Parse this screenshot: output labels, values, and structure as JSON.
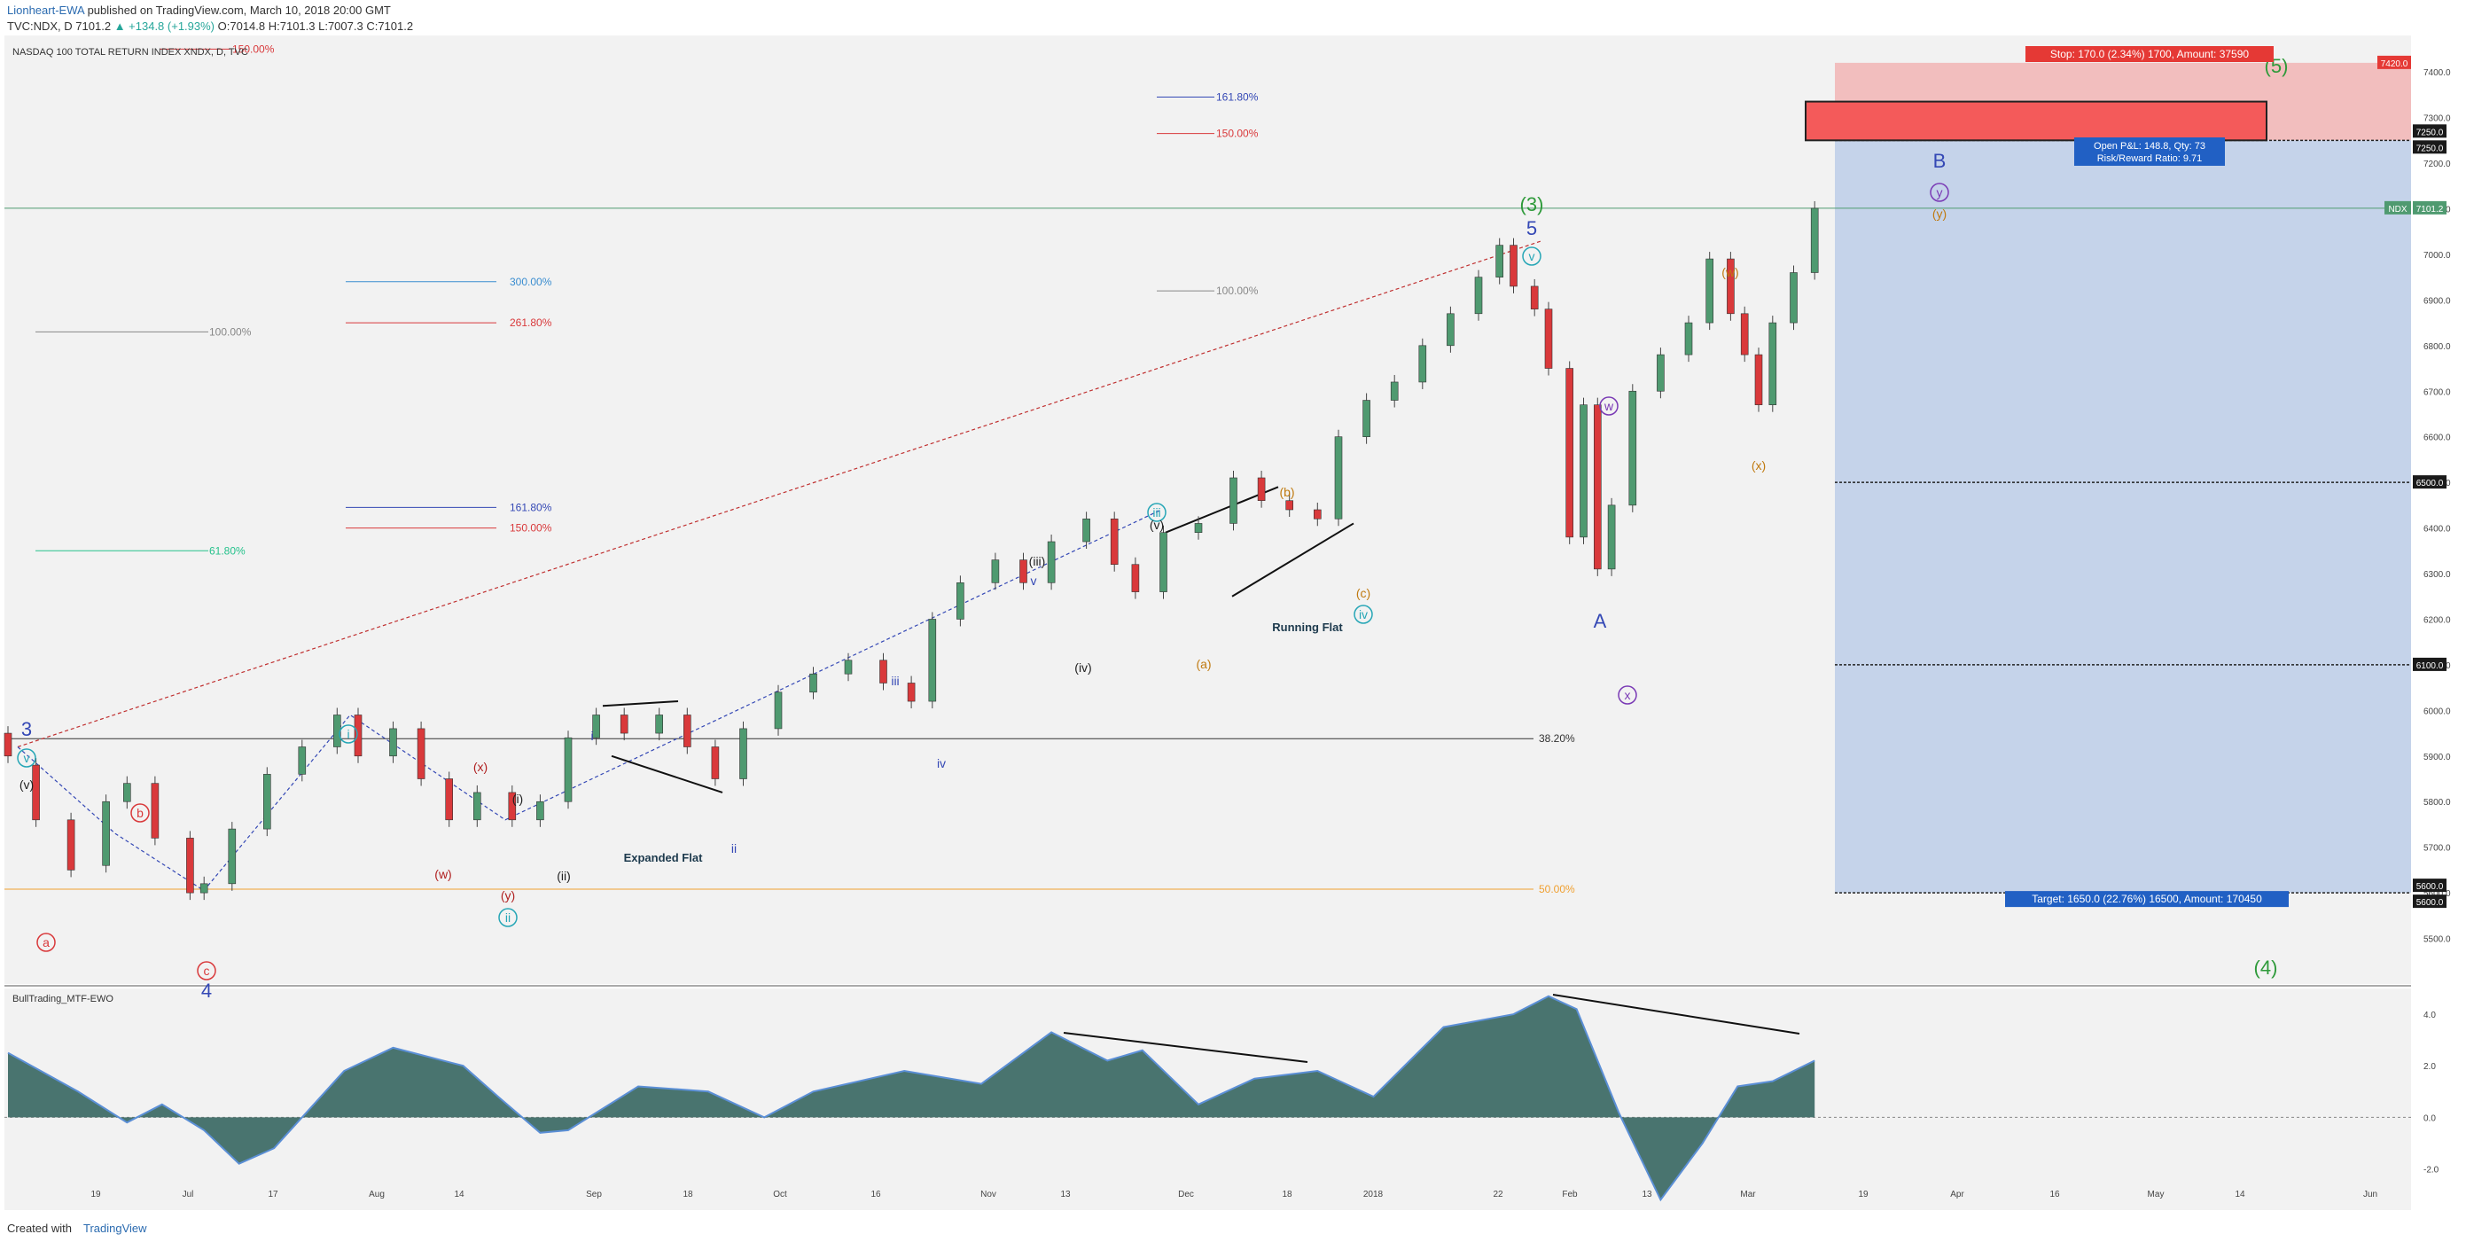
{
  "header": {
    "author": "Lionheart-EWA",
    "published": "published on TradingView.com, March 10, 2018 20:00 GMT",
    "symbol": "TVC:NDX, D",
    "price": "7101.2",
    "change": "▲ +134.8 (+1.93%)",
    "ohlc": "O:7014.8 H:7101.3 L:7007.3 C:7101.2"
  },
  "footer": {
    "created_with": "Created with",
    "brand": "TradingView"
  },
  "chart_data": {
    "type": "candlestick",
    "title": "NASDAQ 100 TOTAL RETURN INDEX XNDX, D, TVC",
    "ylim": [
      5400,
      7480
    ],
    "y_ticks": [
      5500,
      5600,
      5700,
      5800,
      5900,
      6000,
      6100,
      6200,
      6300,
      6400,
      6500,
      6600,
      6700,
      6800,
      6900,
      7000,
      7100,
      7200,
      7300,
      7400
    ],
    "x_ticks": [
      "19",
      "Jul",
      "17",
      "Aug",
      "14",
      "Sep",
      "18",
      "Oct",
      "16",
      "Nov",
      "13",
      "Dec",
      "18",
      "2018",
      "22",
      "Feb",
      "13",
      "Mar",
      "19",
      "Apr",
      "16",
      "May",
      "14",
      "Jun"
    ],
    "colors": {
      "up": "#4f9a70",
      "down": "#d9393b",
      "background": "#f2f2f2"
    },
    "price_series": [
      {
        "x": 0,
        "o": 5950,
        "c": 5900
      },
      {
        "x": 8,
        "o": 5880,
        "c": 5760
      },
      {
        "x": 18,
        "o": 5760,
        "c": 5650
      },
      {
        "x": 28,
        "o": 5660,
        "c": 5800
      },
      {
        "x": 34,
        "o": 5800,
        "c": 5840
      },
      {
        "x": 42,
        "o": 5840,
        "c": 5720
      },
      {
        "x": 52,
        "o": 5720,
        "c": 5600
      },
      {
        "x": 56,
        "o": 5600,
        "c": 5620
      },
      {
        "x": 64,
        "o": 5620,
        "c": 5740
      },
      {
        "x": 74,
        "o": 5740,
        "c": 5860
      },
      {
        "x": 84,
        "o": 5860,
        "c": 5920
      },
      {
        "x": 94,
        "o": 5920,
        "c": 5990
      },
      {
        "x": 100,
        "o": 5990,
        "c": 5900
      },
      {
        "x": 110,
        "o": 5900,
        "c": 5960
      },
      {
        "x": 118,
        "o": 5960,
        "c": 5850
      },
      {
        "x": 126,
        "o": 5850,
        "c": 5760
      },
      {
        "x": 134,
        "o": 5760,
        "c": 5820
      },
      {
        "x": 144,
        "o": 5820,
        "c": 5760
      },
      {
        "x": 152,
        "o": 5760,
        "c": 5800
      },
      {
        "x": 160,
        "o": 5800,
        "c": 5940
      },
      {
        "x": 168,
        "o": 5940,
        "c": 5990
      },
      {
        "x": 176,
        "o": 5990,
        "c": 5950
      },
      {
        "x": 186,
        "o": 5950,
        "c": 5990
      },
      {
        "x": 194,
        "o": 5990,
        "c": 5920
      },
      {
        "x": 202,
        "o": 5920,
        "c": 5850
      },
      {
        "x": 210,
        "o": 5850,
        "c": 5960
      },
      {
        "x": 220,
        "o": 5960,
        "c": 6040
      },
      {
        "x": 230,
        "o": 6040,
        "c": 6080
      },
      {
        "x": 240,
        "o": 6080,
        "c": 6110
      },
      {
        "x": 250,
        "o": 6110,
        "c": 6060
      },
      {
        "x": 258,
        "o": 6060,
        "c": 6020
      },
      {
        "x": 264,
        "o": 6020,
        "c": 6200
      },
      {
        "x": 272,
        "o": 6200,
        "c": 6280
      },
      {
        "x": 282,
        "o": 6280,
        "c": 6330
      },
      {
        "x": 290,
        "o": 6330,
        "c": 6280
      },
      {
        "x": 298,
        "o": 6280,
        "c": 6370
      },
      {
        "x": 308,
        "o": 6370,
        "c": 6420
      },
      {
        "x": 316,
        "o": 6420,
        "c": 6320
      },
      {
        "x": 322,
        "o": 6320,
        "c": 6260
      },
      {
        "x": 330,
        "o": 6260,
        "c": 6390
      },
      {
        "x": 340,
        "o": 6390,
        "c": 6410
      },
      {
        "x": 350,
        "o": 6410,
        "c": 6510
      },
      {
        "x": 358,
        "o": 6510,
        "c": 6460
      },
      {
        "x": 366,
        "o": 6460,
        "c": 6440
      },
      {
        "x": 374,
        "o": 6440,
        "c": 6420
      },
      {
        "x": 380,
        "o": 6420,
        "c": 6600
      },
      {
        "x": 388,
        "o": 6600,
        "c": 6680
      },
      {
        "x": 396,
        "o": 6680,
        "c": 6720
      },
      {
        "x": 404,
        "o": 6720,
        "c": 6800
      },
      {
        "x": 412,
        "o": 6800,
        "c": 6870
      },
      {
        "x": 420,
        "o": 6870,
        "c": 6950
      },
      {
        "x": 426,
        "o": 6950,
        "c": 7020
      },
      {
        "x": 430,
        "o": 7020,
        "c": 6930
      },
      {
        "x": 436,
        "o": 6930,
        "c": 6880
      },
      {
        "x": 440,
        "o": 6880,
        "c": 6750
      },
      {
        "x": 446,
        "o": 6750,
        "c": 6380
      },
      {
        "x": 450,
        "o": 6380,
        "c": 6670
      },
      {
        "x": 454,
        "o": 6670,
        "c": 6310
      },
      {
        "x": 458,
        "o": 6310,
        "c": 6450
      },
      {
        "x": 464,
        "o": 6450,
        "c": 6700
      },
      {
        "x": 472,
        "o": 6700,
        "c": 6780
      },
      {
        "x": 480,
        "o": 6780,
        "c": 6850
      },
      {
        "x": 486,
        "o": 6850,
        "c": 6990
      },
      {
        "x": 492,
        "o": 6990,
        "c": 6870
      },
      {
        "x": 496,
        "o": 6870,
        "c": 6780
      },
      {
        "x": 500,
        "o": 6780,
        "c": 6670
      },
      {
        "x": 504,
        "o": 6670,
        "c": 6850
      },
      {
        "x": 510,
        "o": 6850,
        "c": 6960
      },
      {
        "x": 516,
        "o": 6960,
        "c": 7101
      }
    ],
    "ewo_series": {
      "x": [
        0,
        20,
        34,
        44,
        56,
        66,
        76,
        96,
        110,
        130,
        140,
        152,
        160,
        180,
        200,
        216,
        230,
        256,
        278,
        298,
        314,
        324,
        340,
        356,
        374,
        390,
        410,
        430,
        440,
        448,
        460,
        472,
        484,
        494,
        504,
        516
      ],
      "y": [
        2.5,
        1.0,
        -0.2,
        0.5,
        -0.5,
        -1.8,
        -1.2,
        1.8,
        2.7,
        2.0,
        0.8,
        -0.6,
        -0.5,
        1.2,
        1.0,
        0.0,
        1.0,
        1.8,
        1.3,
        3.3,
        2.2,
        2.6,
        0.5,
        1.5,
        1.8,
        0.8,
        3.5,
        4.0,
        4.7,
        4.2,
        0.2,
        -3.2,
        -1.0,
        1.2,
        1.4,
        2.2
      ],
      "ylim": [
        -3.6,
        5.0
      ],
      "ticks": [
        4.0,
        2.0,
        0.0,
        -2.0
      ],
      "label": "BullTrading_MTF-EWO"
    },
    "annotations": {
      "fib_levels": [
        {
          "label": "300.00%",
          "value": 6940,
          "color": "#3a8dd0"
        },
        {
          "label": "261.80%",
          "value": 6850,
          "color": "#d9393b"
        },
        {
          "label": "100.00%",
          "value": 6830,
          "color": "#888888"
        },
        {
          "label": "161.80%",
          "value": 6445,
          "color": "#3448b5"
        },
        {
          "label": "150.00%",
          "value": 6400,
          "color": "#d9393b"
        },
        {
          "label": "61.80%",
          "value": 6350,
          "color": "#26c28c"
        },
        {
          "label": "161.80%",
          "value": 7345,
          "color": "#3448b5"
        },
        {
          "label": "150.00%",
          "value": 7265,
          "color": "#d9393b"
        },
        {
          "label": "100.00%",
          "value": 6920,
          "color": "#888888"
        },
        {
          "label": "150.00%",
          "value": 7450,
          "color": "#d9393b"
        },
        {
          "label": "38.20%",
          "value": 5938,
          "color": "#333333"
        },
        {
          "label": "50.00%",
          "value": 5608,
          "color": "#f0a030"
        }
      ],
      "wave_labels": [
        {
          "t": "3",
          "c": "#3448b5"
        },
        {
          "t": "v",
          "c": "#26a6b6"
        },
        {
          "t": "(v)",
          "c": "#222222"
        },
        {
          "t": "a",
          "c": "#d9393b"
        },
        {
          "t": "b",
          "c": "#d9393b"
        },
        {
          "t": "c",
          "c": "#d9393b"
        },
        {
          "t": "4",
          "c": "#3448b5"
        },
        {
          "t": "i",
          "c": "#26a6b6"
        },
        {
          "t": "(x)",
          "c": "#b02020"
        },
        {
          "t": "(w)",
          "c": "#b02020"
        },
        {
          "t": "(y)",
          "c": "#b02020"
        },
        {
          "t": "ii",
          "c": "#26a6b6"
        },
        {
          "t": "(i)",
          "c": "#222222"
        },
        {
          "t": "(ii)",
          "c": "#222222"
        },
        {
          "t": "i",
          "c": "#3448b5"
        },
        {
          "t": "ii",
          "c": "#3448b5"
        },
        {
          "t": "iii",
          "c": "#3448b5"
        },
        {
          "t": "iv",
          "c": "#3448b5"
        },
        {
          "t": "v",
          "c": "#3448b5"
        },
        {
          "t": "(iii)",
          "c": "#222222"
        },
        {
          "t": "(iv)",
          "c": "#222222"
        },
        {
          "t": "iii",
          "c": "#26a6b6"
        },
        {
          "t": "(v)",
          "c": "#222222"
        },
        {
          "t": "(a)",
          "c": "#c07a10"
        },
        {
          "t": "(b)",
          "c": "#c07a10"
        },
        {
          "t": "(c)",
          "c": "#c07a10"
        },
        {
          "t": "iv",
          "c": "#26a6b6"
        },
        {
          "t": "(3)",
          "c": "#2e9a3a"
        },
        {
          "t": "5",
          "c": "#3448b5"
        },
        {
          "t": "v",
          "c": "#26a6b6"
        },
        {
          "t": "A",
          "c": "#3448b5"
        },
        {
          "t": "w",
          "c": "#7a3ab5"
        },
        {
          "t": "x",
          "c": "#7a3ab5"
        },
        {
          "t": "(w)",
          "c": "#c07a10"
        },
        {
          "t": "(x)",
          "c": "#c07a10"
        },
        {
          "t": "B",
          "c": "#3448b5"
        },
        {
          "t": "y",
          "c": "#7a3ab5"
        },
        {
          "t": "(y)",
          "c": "#c07a10"
        },
        {
          "t": "(4)",
          "c": "#2e9a3a"
        },
        {
          "t": "(5)",
          "c": "#2e9a3a"
        }
      ],
      "notes": [
        "Expanded Flat",
        "Running Flat"
      ],
      "stop_box": "Stop: 170.0 (2.34%) 1700, Amount: 37590",
      "open_pl": "Open P&L: 148.8, Qty: 73",
      "risk_reward": "Risk/Reward Ratio: 9.71",
      "target_box": "Target: 1650.0 (22.76%) 16500, Amount: 170450",
      "price_tags": [
        {
          "t": "7420.0",
          "c": "#e53935"
        },
        {
          "t": "7250.0",
          "c": "#1a1a1a"
        },
        {
          "t": "7250.0",
          "c": "#1a1a1a"
        },
        {
          "t": "NDX",
          "c": "#4f9a70"
        },
        {
          "t": "7101.2",
          "c": "#4f9a70"
        },
        {
          "t": "6500.0",
          "c": "#1a1a1a"
        },
        {
          "t": "6100.0",
          "c": "#1a1a1a"
        },
        {
          "t": "5600.0",
          "c": "#1a1a1a"
        },
        {
          "t": "5600.0",
          "c": "#1a1a1a"
        }
      ]
    }
  }
}
